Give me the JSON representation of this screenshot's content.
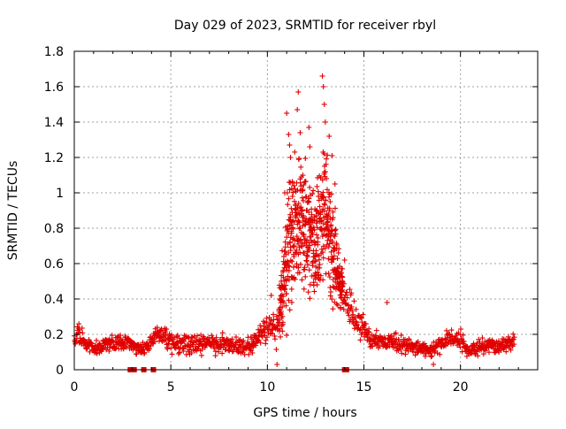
{
  "chart_data": {
    "type": "scatter",
    "title": "Day 029 of 2023, SRMTID for receiver rbyl",
    "xlabel": "GPS time / hours",
    "ylabel": "SRMTID / TECUs",
    "xlim": [
      0,
      24
    ],
    "ylim": [
      0,
      1.8
    ],
    "xticks": [
      0,
      5,
      10,
      15,
      20
    ],
    "yticks": [
      0,
      0.2,
      0.4,
      0.6,
      0.8,
      1,
      1.2,
      1.4,
      1.6,
      1.8
    ],
    "ytick_labels": [
      "0",
      "0.2",
      "0.4",
      "0.6",
      "0.8",
      "1",
      "1.2",
      "1.4",
      "1.6",
      "1.8"
    ],
    "grid": true,
    "marker": "+",
    "color": "#e00000",
    "series": [
      {
        "name": "SRMTID",
        "profile": [
          [
            0.0,
            0.18,
            0.05
          ],
          [
            0.2,
            0.22,
            0.06
          ],
          [
            0.5,
            0.16,
            0.05
          ],
          [
            1.0,
            0.12,
            0.04
          ],
          [
            1.5,
            0.14,
            0.04
          ],
          [
            2.0,
            0.15,
            0.04
          ],
          [
            2.5,
            0.16,
            0.04
          ],
          [
            3.0,
            0.14,
            0.04
          ],
          [
            3.5,
            0.11,
            0.03
          ],
          [
            4.0,
            0.16,
            0.04
          ],
          [
            4.3,
            0.22,
            0.05
          ],
          [
            5.0,
            0.15,
            0.05
          ],
          [
            6.0,
            0.14,
            0.05
          ],
          [
            7.0,
            0.15,
            0.05
          ],
          [
            8.0,
            0.14,
            0.05
          ],
          [
            9.0,
            0.13,
            0.04
          ],
          [
            9.6,
            0.19,
            0.05
          ],
          [
            10.0,
            0.26,
            0.08
          ],
          [
            10.5,
            0.22,
            0.08
          ],
          [
            10.8,
            0.45,
            0.25
          ],
          [
            11.2,
            0.75,
            0.35
          ],
          [
            11.6,
            0.85,
            0.35
          ],
          [
            12.0,
            0.8,
            0.35
          ],
          [
            12.5,
            0.7,
            0.3
          ],
          [
            12.9,
            0.9,
            0.35
          ],
          [
            13.3,
            0.75,
            0.3
          ],
          [
            13.8,
            0.45,
            0.15
          ],
          [
            14.2,
            0.38,
            0.1
          ],
          [
            14.6,
            0.28,
            0.08
          ],
          [
            15.0,
            0.22,
            0.07
          ],
          [
            15.5,
            0.17,
            0.05
          ],
          [
            16.5,
            0.15,
            0.05
          ],
          [
            17.5,
            0.13,
            0.04
          ],
          [
            18.5,
            0.11,
            0.04
          ],
          [
            19.5,
            0.18,
            0.05
          ],
          [
            20.0,
            0.17,
            0.05
          ],
          [
            20.5,
            0.1,
            0.03
          ],
          [
            21.0,
            0.13,
            0.04
          ],
          [
            22.0,
            0.13,
            0.04
          ],
          [
            22.8,
            0.16,
            0.04
          ]
        ],
        "outliers": [
          [
            11.0,
            1.45
          ],
          [
            11.1,
            1.33
          ],
          [
            11.15,
            1.27
          ],
          [
            11.2,
            1.2
          ],
          [
            11.6,
            1.57
          ],
          [
            11.55,
            1.47
          ],
          [
            11.7,
            1.34
          ],
          [
            12.15,
            1.37
          ],
          [
            12.2,
            1.26
          ],
          [
            12.85,
            1.66
          ],
          [
            12.9,
            1.6
          ],
          [
            12.95,
            1.5
          ],
          [
            13.0,
            1.4
          ],
          [
            13.2,
            1.32
          ],
          [
            13.35,
            1.21
          ],
          [
            10.9,
            1.0
          ],
          [
            11.3,
            0.98
          ],
          [
            13.5,
            1.05
          ],
          [
            16.2,
            0.38
          ],
          [
            14.0,
            0.62
          ],
          [
            10.2,
            0.42
          ],
          [
            10.5,
            0.03
          ],
          [
            18.6,
            0.03
          ]
        ]
      }
    ],
    "outage_markers_x": [
      2.9,
      3.0,
      3.1,
      3.6,
      4.1,
      14.0,
      14.1
    ]
  }
}
